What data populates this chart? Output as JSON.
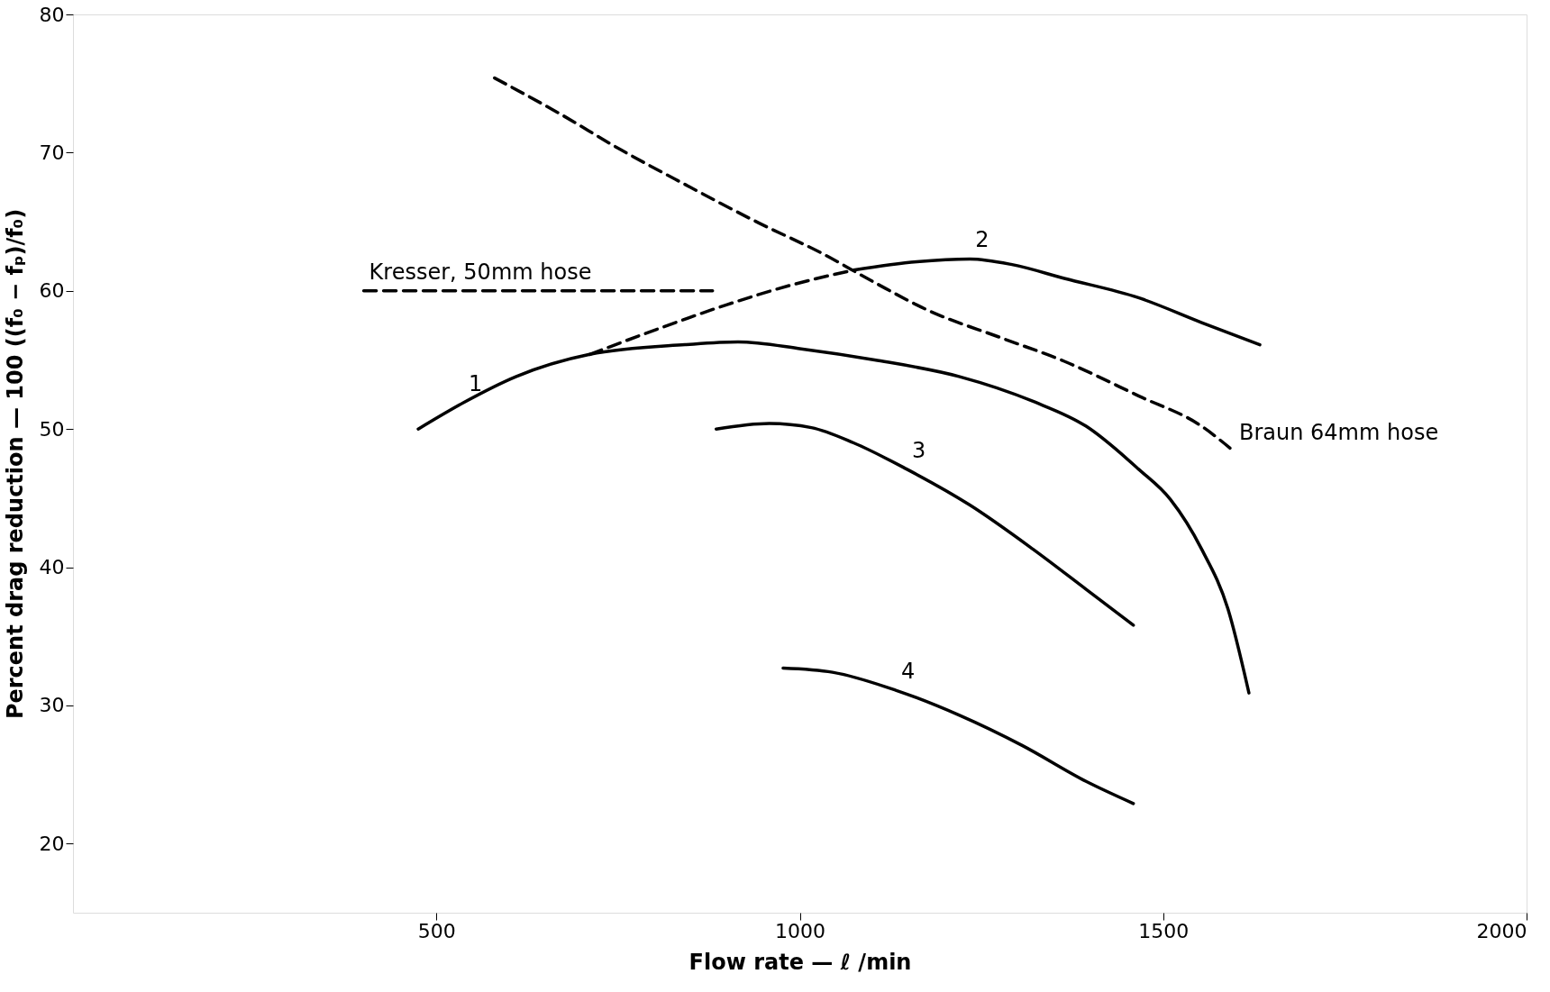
{
  "chart_data": {
    "type": "line",
    "xlabel": "Flow rate — ℓ /min",
    "ylabel": "Percent drag reduction — 100 ((f₀ − fₚ)/f₀)",
    "xlim": [
      0,
      2000
    ],
    "xticks": [
      500,
      {
        "value": 1000,
        "label": "1000"
      },
      {
        "value": 1500,
        "label": "1500"
      },
      {
        "value": 2000,
        "label": "2000"
      }
    ],
    "ylim": [
      15,
      80
    ],
    "yticks": [
      20,
      30,
      40,
      50,
      60,
      70,
      80
    ],
    "grid": false,
    "marker": "none",
    "series": [
      {
        "color": "#000000",
        "line_style": "solid",
        "x": [
          475,
          537,
          610,
          711,
          842,
          915,
          1002,
          1103,
          1219,
          1321,
          1394,
          1466,
          1510,
          1553,
          1589,
          1618
        ],
        "values": [
          50,
          51.9,
          53.8,
          55.4,
          56.1,
          56.3,
          55.8,
          55,
          53.8,
          52,
          50.2,
          47.1,
          44.9,
          41.3,
          37,
          30.9
        ]
      },
      {
        "color": "#000000",
        "line_style": "dashed",
        "x": [
          711,
          813,
          900,
          987,
          1074
        ],
        "values": [
          55.4,
          57.4,
          59,
          60.4,
          61.5
        ]
      },
      {
        "color": "#000000",
        "line_style": "solid",
        "x": [
          1074,
          1161,
          1234,
          1292,
          1364,
          1466,
          1553,
          1633
        ],
        "values": [
          61.5,
          62.1,
          62.3,
          61.9,
          60.9,
          59.5,
          57.7,
          56.1
        ]
      },
      {
        "color": "#000000",
        "line_style": "dashed",
        "x": [
          580,
          667,
          754,
          842,
          944,
          1031,
          1103,
          1176,
          1277,
          1364,
          1466,
          1553,
          1597
        ],
        "values": [
          75.4,
          72.9,
          70.2,
          67.7,
          64.9,
          62.7,
          60.6,
          58.6,
          56.6,
          54.9,
          52.4,
          50.2,
          48.4
        ]
      },
      {
        "color": "#000000",
        "line_style": "dashed",
        "x": [
          400,
          880
        ],
        "values": [
          60,
          60
        ]
      },
      {
        "color": "#000000",
        "line_style": "solid",
        "x": [
          885,
          958,
          1016,
          1074,
          1147,
          1234,
          1321,
          1394,
          1459
        ],
        "values": [
          50,
          50.4,
          50.1,
          49,
          47.1,
          44.5,
          41.3,
          38.4,
          35.8
        ]
      },
      {
        "color": "#000000",
        "line_style": "solid",
        "x": [
          977,
          1045,
          1132,
          1219,
          1306,
          1394,
          1459
        ],
        "values": [
          32.7,
          32.4,
          31.1,
          29.3,
          27.1,
          24.5,
          22.9
        ]
      }
    ],
    "annotations": [
      {
        "text": "1",
        "x": 537,
        "y": 51.9
      },
      {
        "text": "2",
        "x": 1234,
        "y": 62.3
      },
      {
        "text": "3",
        "x": 1147,
        "y": 47.1
      },
      {
        "text": "4",
        "x": 1132,
        "y": 31.1
      },
      {
        "text": "Kresser, 50mm hose",
        "x": 400,
        "y": 60
      },
      {
        "text": "Braun 64mm hose",
        "x": 1597,
        "y": 48.4
      }
    ]
  }
}
